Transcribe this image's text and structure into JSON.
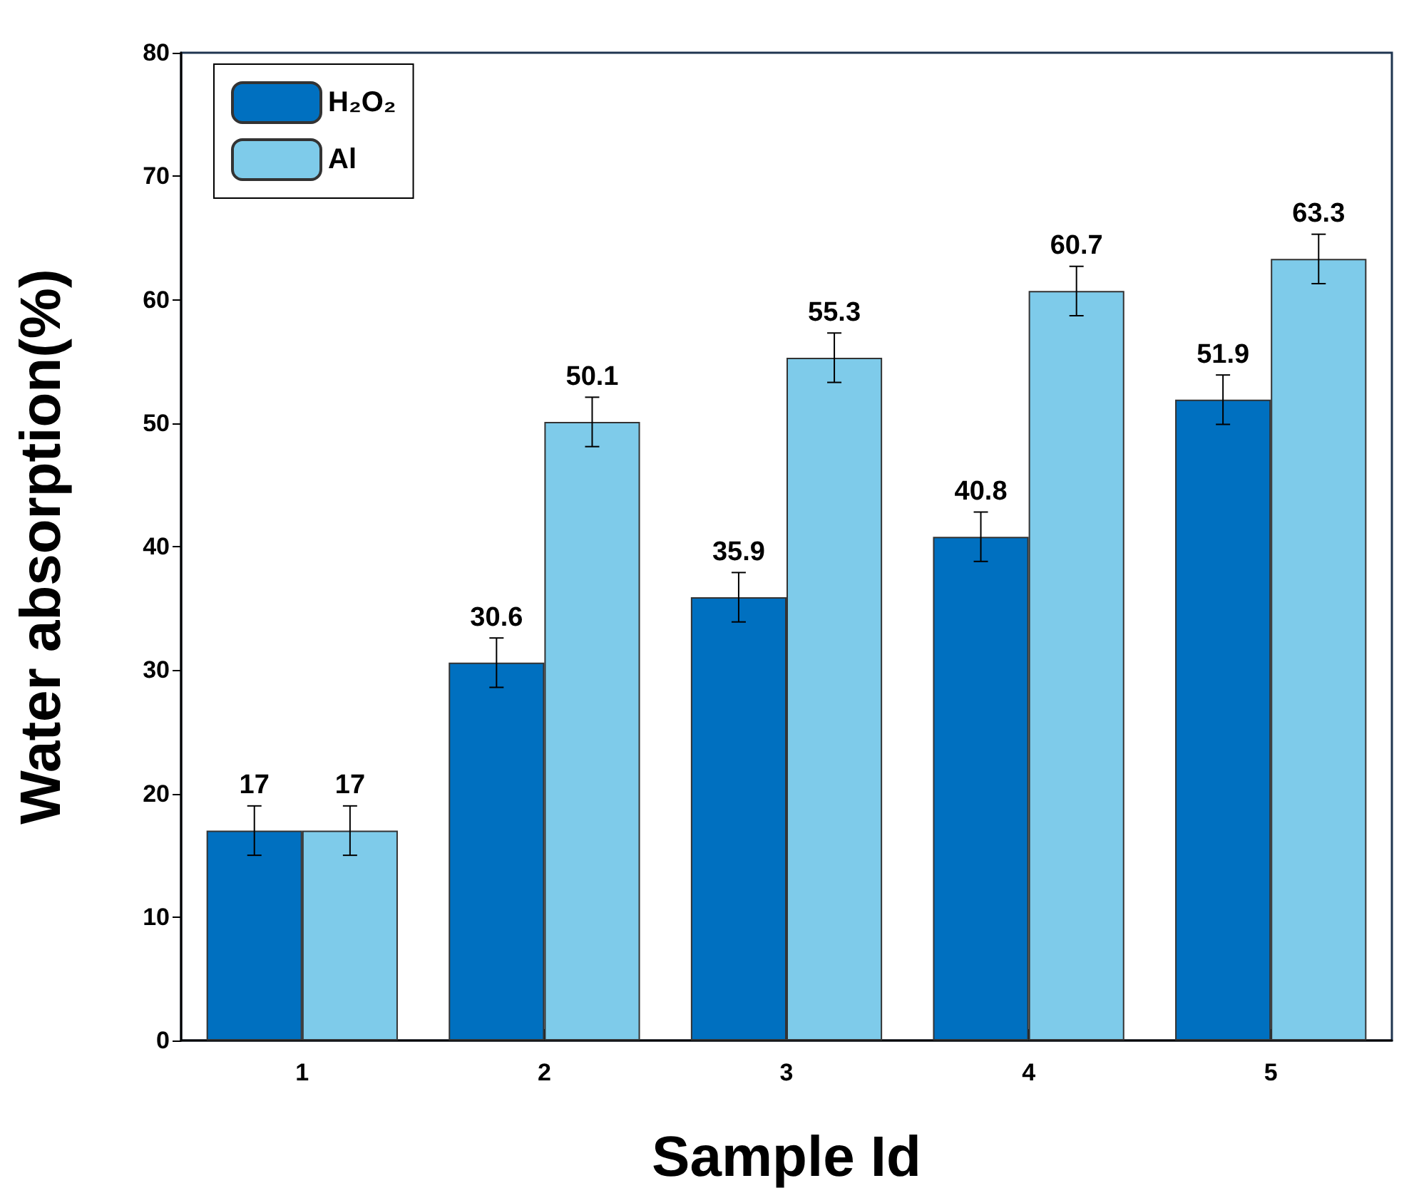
{
  "chart_data": {
    "type": "bar",
    "xlabel": "Sample Id",
    "ylabel": "Water absorption(%)",
    "categories": [
      "1",
      "2",
      "3",
      "4",
      "5"
    ],
    "series": [
      {
        "name": "H₂O₂",
        "color": "#0070c0",
        "values": [
          17,
          30.6,
          35.9,
          40.8,
          51.9
        ],
        "errors": [
          2,
          2,
          2,
          2,
          2
        ]
      },
      {
        "name": "Al",
        "color": "#7ecbea",
        "values": [
          17,
          50.1,
          55.3,
          60.7,
          63.3
        ],
        "errors": [
          2,
          2,
          2,
          2,
          2
        ]
      }
    ],
    "ylim": [
      0,
      80
    ],
    "yticks": [
      0,
      10,
      20,
      30,
      40,
      50,
      60,
      70,
      80
    ],
    "grid": false,
    "legend": "top left",
    "data_labels": true
  }
}
